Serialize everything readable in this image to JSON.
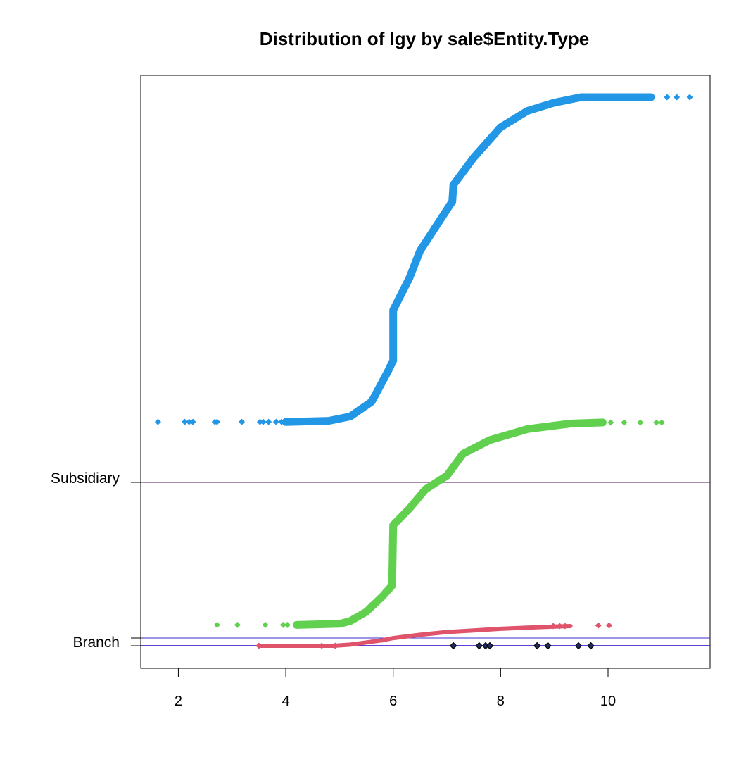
{
  "chart_data": {
    "type": "scatter",
    "title": "Distribution of lgy by sale$Entity.Type",
    "xlabel": "",
    "ylabel": "",
    "xlim": [
      1.3,
      11.9
    ],
    "x_ticks": [
      "2",
      "4",
      "6",
      "8",
      "10"
    ],
    "x_tick_values": [
      2,
      4,
      6,
      8,
      10
    ],
    "grid": false,
    "legend": "none",
    "groups": [
      {
        "label": "",
        "baseline_color": "#000000"
      },
      {
        "label": "Branch",
        "baseline_color": "#df536b"
      },
      {
        "label": "",
        "baseline_color": "#61d04f"
      },
      {
        "label": "Subsidiary",
        "baseline_color": "#2297e6"
      }
    ],
    "y_group_labels": [
      "Branch",
      "Subsidiary"
    ],
    "series": [
      {
        "color": "#000000",
        "points": [
          [
            7.12,
            0.0
          ],
          [
            7.6,
            0.0
          ],
          [
            7.72,
            0.0
          ],
          [
            7.8,
            0.0
          ],
          [
            8.68,
            0.0
          ],
          [
            8.88,
            0.0
          ],
          [
            9.45,
            0.0
          ],
          [
            9.68,
            0.0
          ]
        ]
      },
      {
        "color": "#df536b",
        "curve": [
          [
            3.5,
            0.0
          ],
          [
            4.9,
            0.0
          ],
          [
            5.2,
            0.002
          ],
          [
            5.5,
            0.006
          ],
          [
            5.8,
            0.01
          ],
          [
            6.0,
            0.014
          ],
          [
            6.5,
            0.02
          ],
          [
            7.0,
            0.025
          ],
          [
            7.5,
            0.028
          ],
          [
            8.0,
            0.031
          ],
          [
            8.5,
            0.033
          ],
          [
            9.0,
            0.035
          ],
          [
            9.3,
            0.036
          ]
        ],
        "points": [
          [
            3.5,
            0.0
          ],
          [
            4.67,
            0.0
          ],
          [
            4.92,
            0.0
          ],
          [
            8.98,
            0.036
          ],
          [
            9.1,
            0.036
          ],
          [
            9.2,
            0.036
          ],
          [
            9.82,
            0.037
          ],
          [
            10.02,
            0.037
          ]
        ]
      },
      {
        "color": "#61d04f",
        "curve": [
          [
            4.2,
            0.038
          ],
          [
            5.0,
            0.04
          ],
          [
            5.2,
            0.045
          ],
          [
            5.5,
            0.062
          ],
          [
            5.8,
            0.09
          ],
          [
            5.98,
            0.11
          ],
          [
            6.0,
            0.22
          ],
          [
            6.3,
            0.25
          ],
          [
            6.6,
            0.285
          ],
          [
            7.0,
            0.31
          ],
          [
            7.3,
            0.35
          ],
          [
            7.8,
            0.375
          ],
          [
            8.5,
            0.395
          ],
          [
            9.3,
            0.405
          ],
          [
            9.9,
            0.407
          ]
        ],
        "points": [
          [
            2.72,
            0.038
          ],
          [
            3.1,
            0.038
          ],
          [
            3.62,
            0.038
          ],
          [
            3.95,
            0.038
          ],
          [
            4.03,
            0.038
          ],
          [
            10.05,
            0.407
          ],
          [
            10.3,
            0.407
          ],
          [
            10.6,
            0.407
          ],
          [
            10.9,
            0.407
          ],
          [
            11.0,
            0.407
          ]
        ]
      },
      {
        "color": "#2297e6",
        "curve": [
          [
            4.0,
            0.408
          ],
          [
            4.8,
            0.41
          ],
          [
            5.2,
            0.418
          ],
          [
            5.6,
            0.445
          ],
          [
            5.9,
            0.5
          ],
          [
            6.0,
            0.52
          ],
          [
            6.0,
            0.612
          ],
          [
            6.3,
            0.67
          ],
          [
            6.5,
            0.72
          ],
          [
            6.8,
            0.765
          ],
          [
            7.1,
            0.81
          ],
          [
            7.12,
            0.84
          ],
          [
            7.5,
            0.89
          ],
          [
            8.0,
            0.945
          ],
          [
            8.5,
            0.975
          ],
          [
            9.0,
            0.99
          ],
          [
            9.5,
            1.0
          ],
          [
            10.0,
            1.0
          ],
          [
            10.8,
            1.0
          ]
        ],
        "points": [
          [
            1.62,
            0.408
          ],
          [
            2.12,
            0.408
          ],
          [
            2.2,
            0.408
          ],
          [
            2.27,
            0.408
          ],
          [
            2.68,
            0.408
          ],
          [
            2.72,
            0.408
          ],
          [
            3.18,
            0.408
          ],
          [
            3.52,
            0.408
          ],
          [
            3.58,
            0.408
          ],
          [
            3.68,
            0.408
          ],
          [
            3.82,
            0.408
          ],
          [
            3.92,
            0.408
          ],
          [
            11.1,
            1.0
          ],
          [
            11.28,
            1.0
          ],
          [
            11.52,
            1.0
          ]
        ]
      }
    ]
  }
}
